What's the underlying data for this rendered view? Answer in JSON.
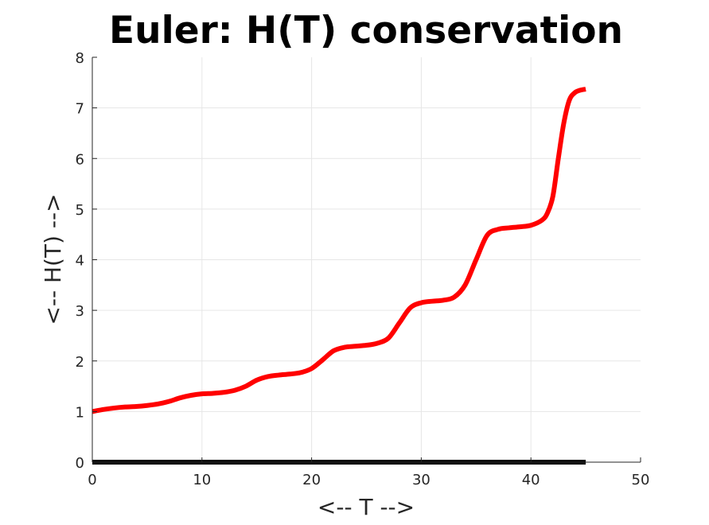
{
  "chart_data": {
    "type": "line",
    "title": "Euler: H(T) conservation",
    "xlabel": "<-- T -->",
    "ylabel": "<-- H(T) -->",
    "xlim": [
      0,
      50
    ],
    "ylim": [
      0,
      8
    ],
    "xticks": [
      0,
      10,
      20,
      30,
      40,
      50
    ],
    "yticks": [
      0,
      1,
      2,
      3,
      4,
      5,
      6,
      7,
      8
    ],
    "grid": true,
    "series": [
      {
        "color": "#ff0000",
        "x": [
          0,
          1,
          2,
          3,
          4,
          5,
          6,
          7,
          8,
          9,
          10,
          11,
          12,
          13,
          14,
          15,
          16,
          17,
          18,
          19,
          20,
          21,
          22,
          23,
          24,
          25,
          26,
          27,
          28,
          29,
          30,
          31,
          32,
          33,
          34,
          35,
          36,
          37,
          38,
          39,
          40,
          41,
          41.5,
          42,
          42.5,
          43,
          43.5,
          44,
          44.5,
          45
        ],
        "y": [
          1.0,
          1.04,
          1.07,
          1.09,
          1.1,
          1.12,
          1.15,
          1.2,
          1.27,
          1.32,
          1.35,
          1.36,
          1.38,
          1.42,
          1.5,
          1.62,
          1.69,
          1.72,
          1.74,
          1.77,
          1.85,
          2.02,
          2.2,
          2.27,
          2.29,
          2.31,
          2.35,
          2.45,
          2.75,
          3.05,
          3.15,
          3.18,
          3.2,
          3.26,
          3.5,
          4.0,
          4.48,
          4.6,
          4.63,
          4.65,
          4.68,
          4.78,
          4.92,
          5.25,
          6.0,
          6.7,
          7.15,
          7.3,
          7.35,
          7.37
        ]
      },
      {
        "color": "#000000",
        "x": [
          0,
          45
        ],
        "y": [
          0,
          0
        ]
      }
    ]
  }
}
